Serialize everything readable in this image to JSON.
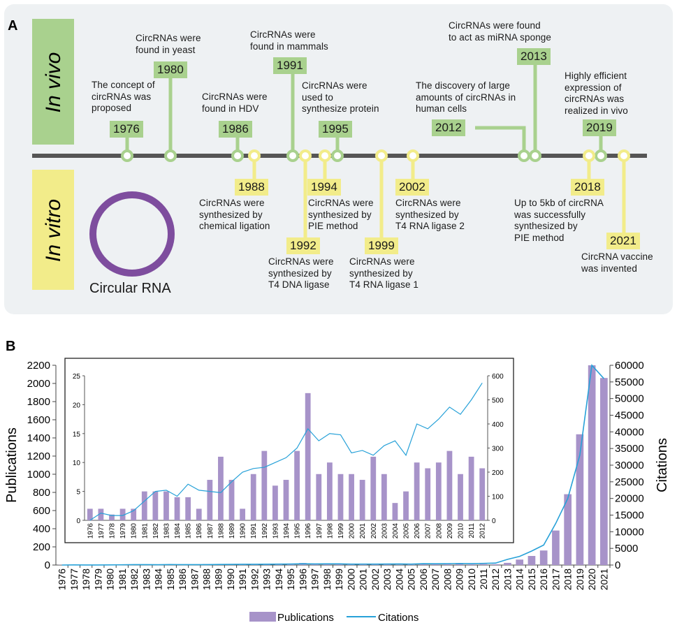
{
  "panel_a": {
    "label": "A",
    "in_vivo": "In vivo",
    "in_vitro": "In vitro",
    "circle_label": "Circular RNA",
    "vivo": [
      {
        "year": "1976",
        "lines": [
          "The concept of",
          "circRNAs was",
          "proposed"
        ]
      },
      {
        "year": "1980",
        "lines": [
          "CircRNAs were",
          "found in yeast"
        ]
      },
      {
        "year": "1986",
        "lines": [
          "CircRNAs were",
          "found in HDV"
        ]
      },
      {
        "year": "1991",
        "lines": [
          "CircRNAs were",
          "found in mammals"
        ]
      },
      {
        "year": "1995",
        "lines": [
          "CircRNAs were",
          "used to",
          "synthesize protein"
        ]
      },
      {
        "year": "2012",
        "lines": [
          "The discovery of large",
          "amounts of circRNAs in",
          "human cells"
        ]
      },
      {
        "year": "2013",
        "lines": [
          "CircRNAs were found",
          "to act as miRNA sponge"
        ]
      },
      {
        "year": "2019",
        "lines": [
          "Highly efficient",
          "expression of",
          "circRNAs was",
          "realized in vivo"
        ]
      }
    ],
    "vitro": [
      {
        "year": "1988",
        "lines": [
          "CircRNAs were",
          "synthesized by",
          "chemical ligation"
        ]
      },
      {
        "year": "1992",
        "lines": [
          "CircRNAs were",
          "synthesized by",
          "T4 DNA ligase"
        ]
      },
      {
        "year": "1994",
        "lines": [
          "CircRNAs were",
          "synthesized by",
          "PIE method"
        ]
      },
      {
        "year": "1999",
        "lines": [
          "CircRNAs were",
          "synthesized by",
          "T4 RNA ligase 1"
        ]
      },
      {
        "year": "2002",
        "lines": [
          "CircRNAs were",
          "synthesized by",
          "T4 RNA ligase 2"
        ]
      },
      {
        "year": "2018",
        "lines": [
          "Up to 5kb of circRNA",
          "was successfully",
          "synthesized by",
          "PIE method"
        ]
      },
      {
        "year": "2021",
        "lines": [
          "CircRNA vaccine",
          "was invented"
        ]
      }
    ]
  },
  "colors": {
    "green": "#a9d18e",
    "yellow": "#f2ec8a",
    "bar": "#a793c9",
    "line": "#27a1d8",
    "circle": "#7e4d9e",
    "panel": "#eef1f3"
  },
  "chart_data": [
    {
      "type": "bar+line",
      "label": "B",
      "categories": [
        "1976",
        "1977",
        "1978",
        "1979",
        "1980",
        "1981",
        "1982",
        "1983",
        "1984",
        "1985",
        "1986",
        "1987",
        "1988",
        "1989",
        "1990",
        "1991",
        "1992",
        "1993",
        "1994",
        "1995",
        "1996",
        "1997",
        "1998",
        "1999",
        "2000",
        "2001",
        "2002",
        "2003",
        "2004",
        "2005",
        "2006",
        "2007",
        "2008",
        "2009",
        "2010",
        "2011",
        "2012",
        "2013",
        "2014",
        "2015",
        "2016",
        "2017",
        "2018",
        "2019",
        "2020",
        "2021"
      ],
      "series": [
        {
          "name": "Publications",
          "type": "bar",
          "axis": "left",
          "values": [
            2,
            2,
            1,
            2,
            2,
            5,
            5,
            5,
            4,
            4,
            2,
            7,
            11,
            7,
            2,
            8,
            12,
            6,
            7,
            12,
            22,
            8,
            10,
            8,
            8,
            7,
            11,
            8,
            3,
            5,
            10,
            9,
            10,
            12,
            8,
            11,
            9,
            24,
            60,
            100,
            160,
            380,
            780,
            1440,
            2200,
            2060
          ]
        },
        {
          "name": "Citations",
          "type": "line",
          "axis": "right",
          "values": [
            0,
            30,
            20,
            20,
            40,
            80,
            120,
            120,
            100,
            150,
            120,
            120,
            120,
            180,
            200,
            220,
            220,
            250,
            280,
            300,
            380,
            330,
            360,
            360,
            280,
            290,
            270,
            310,
            330,
            270,
            400,
            380,
            420,
            470,
            440,
            500,
            580,
            1700,
            2600,
            4200,
            6000,
            12500,
            20000,
            33000,
            60000,
            56000
          ]
        }
      ],
      "ylabel": "Publications",
      "y2label": "Citations",
      "ylim": [
        0,
        2200
      ],
      "yticks": [
        0,
        200,
        400,
        600,
        800,
        1000,
        1200,
        1400,
        1600,
        1800,
        2000,
        2200
      ],
      "y2lim": [
        0,
        60000
      ],
      "y2ticks": [
        0,
        5000,
        10000,
        15000,
        20000,
        25000,
        30000,
        35000,
        40000,
        45000,
        50000,
        55000,
        60000
      ],
      "legend": [
        "Publications",
        "Citations"
      ]
    },
    {
      "type": "bar+line",
      "label": "inset",
      "categories": [
        "1976",
        "1977",
        "1978",
        "1979",
        "1980",
        "1981",
        "1982",
        "1983",
        "1984",
        "1985",
        "1986",
        "1987",
        "1988",
        "1989",
        "1990",
        "1991",
        "1992",
        "1993",
        "1994",
        "1995",
        "1996",
        "1997",
        "1998",
        "1999",
        "2000",
        "2001",
        "2002",
        "2003",
        "2004",
        "2005",
        "2006",
        "2007",
        "2008",
        "2009",
        "2010",
        "2011",
        "2012"
      ],
      "series": [
        {
          "name": "Publications",
          "type": "bar",
          "axis": "left",
          "values": [
            2,
            2,
            1,
            2,
            2,
            5,
            5,
            5,
            4,
            4,
            2,
            7,
            11,
            7,
            2,
            8,
            12,
            6,
            7,
            12,
            22,
            8,
            10,
            8,
            8,
            7,
            11,
            8,
            3,
            5,
            10,
            9,
            10,
            12,
            8,
            11,
            9
          ]
        },
        {
          "name": "Citations",
          "type": "line",
          "axis": "right",
          "values": [
            0,
            30,
            20,
            20,
            40,
            80,
            120,
            125,
            100,
            150,
            125,
            120,
            115,
            160,
            200,
            215,
            220,
            240,
            260,
            300,
            380,
            330,
            360,
            355,
            280,
            290,
            270,
            310,
            330,
            270,
            400,
            380,
            420,
            470,
            440,
            500,
            570
          ]
        }
      ],
      "ylim": [
        0,
        25
      ],
      "yticks": [
        0,
        5,
        10,
        15,
        20,
        25
      ],
      "y2lim": [
        0,
        600
      ],
      "y2ticks": [
        0,
        100,
        200,
        300,
        400,
        500,
        600
      ]
    }
  ]
}
